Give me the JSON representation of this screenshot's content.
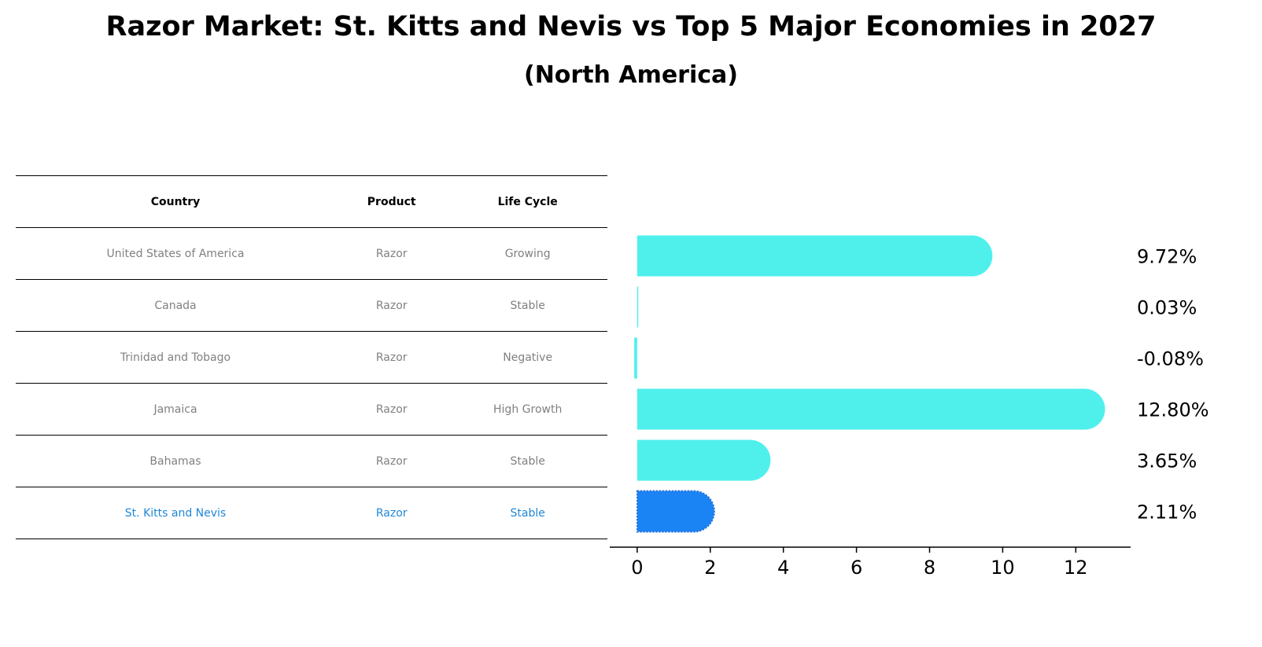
{
  "title": "Razor Market: St. Kitts and Nevis vs Top 5 Major Economies in 2027",
  "subtitle": "(North America)",
  "colors": {
    "bar": "#4ff0ec",
    "highlight": "#1b84f5",
    "highlight_text": "#1f87d8",
    "muted_text": "#808080"
  },
  "table": {
    "headers": [
      "Country",
      "Product",
      "Life Cycle"
    ],
    "rows": [
      {
        "country": "United States of America",
        "product": "Razor",
        "life_cycle": "Growing"
      },
      {
        "country": "Canada",
        "product": "Razor",
        "life_cycle": "Stable"
      },
      {
        "country": "Trinidad and Tobago",
        "product": "Razor",
        "life_cycle": "Negative"
      },
      {
        "country": "Jamaica",
        "product": "Razor",
        "life_cycle": "High Growth"
      },
      {
        "country": "Bahamas",
        "product": "Razor",
        "life_cycle": "Stable"
      },
      {
        "country": "St. Kitts and Nevis",
        "product": "Razor",
        "life_cycle": "Stable",
        "highlight": true
      }
    ]
  },
  "chart_data": {
    "type": "bar",
    "orientation": "horizontal",
    "categories": [
      "United States of America",
      "Canada",
      "Trinidad and Tobago",
      "Jamaica",
      "Bahamas",
      "St. Kitts and Nevis"
    ],
    "values": [
      9.72,
      0.03,
      -0.08,
      12.8,
      3.65,
      2.11
    ],
    "value_labels": [
      "9.72%",
      "0.03%",
      "-0.08%",
      "12.80%",
      "3.65%",
      "2.11%"
    ],
    "highlight_index": 5,
    "xlim": [
      -0.75,
      13.5
    ],
    "xticks": [
      0,
      2,
      4,
      6,
      8,
      10,
      12
    ],
    "xlabel": "",
    "ylabel": "",
    "grid": false,
    "legend": "none"
  }
}
